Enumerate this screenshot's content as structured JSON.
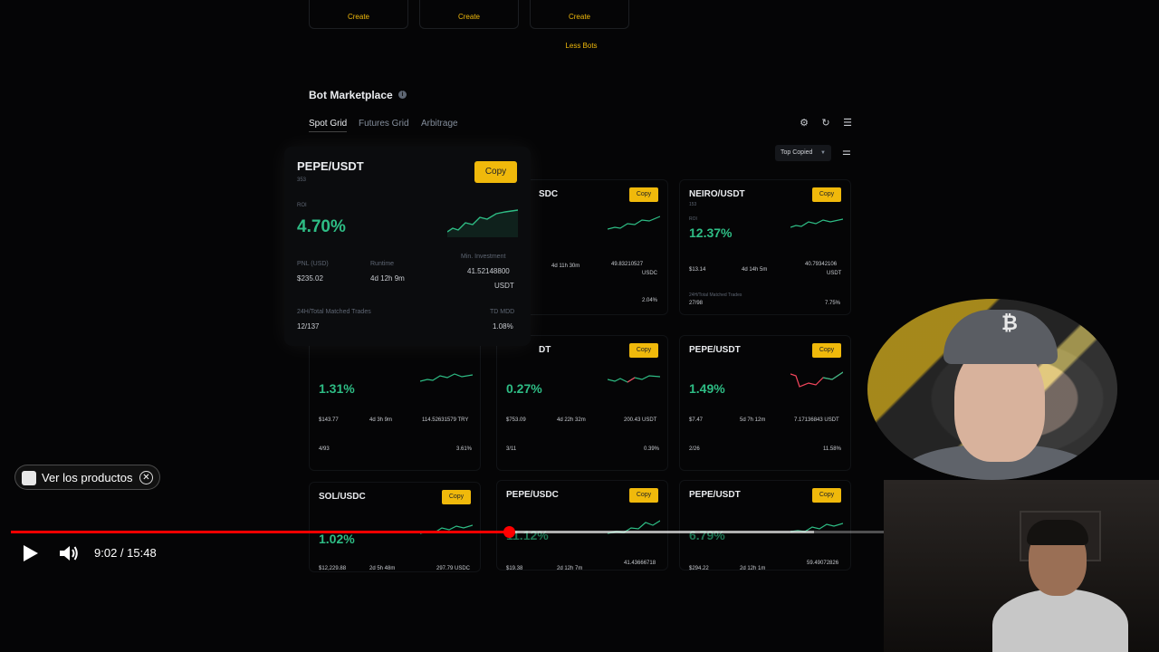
{
  "top_cards": {
    "create_label": "Create",
    "less_bots": "Less Bots"
  },
  "marketplace": {
    "title": "Bot Marketplace",
    "tabs": [
      "Spot Grid",
      "Futures Grid",
      "Arbitrage"
    ],
    "sort_label": "Top Copied",
    "copy_label": "Copy"
  },
  "featured_bot": {
    "pair": "PEPE/USDT",
    "users": "353",
    "roi_label": "ROI",
    "roi": "4.70%",
    "pnl_label": "PNL (USD)",
    "pnl": "$235.02",
    "runtime_label": "Runtime",
    "runtime": "4d 12h 9m",
    "min_inv_label": "Min. Investment",
    "min_inv": "41.52148800",
    "min_inv_unit": "USDT",
    "trades_label": "24H/Total Matched Trades",
    "trades": "12/137",
    "mdd_label": "TD MDD",
    "mdd": "1.08%"
  },
  "bots": [
    {
      "pair": "SDC",
      "users": "",
      "roi": "",
      "pnl": "",
      "runtime": "4d 11h 30m",
      "min_inv": "49.83210527",
      "unit": "USDC",
      "trades": "",
      "mdd": "2.04%"
    },
    {
      "pair": "NEIRO/USDT",
      "users": "153",
      "roi": "12.37%",
      "pnl": "$13.14",
      "runtime": "4d 14h 5m",
      "min_inv": "40.79342106",
      "unit": "USDT",
      "trades": "27/98",
      "mdd": "7.75%"
    },
    {
      "pair": "",
      "users": "",
      "roi": "1.31%",
      "pnl": "$143.77",
      "runtime": "4d 3h 9m",
      "min_inv": "114.52631579 TRY",
      "unit": "",
      "trades": "4/93",
      "mdd": "3.61%"
    },
    {
      "pair": "DT",
      "users": "",
      "roi": "0.27%",
      "pnl": "$753.09",
      "runtime": "4d 22h 32m",
      "min_inv": "200.43 USDT",
      "unit": "",
      "trades": "3/11",
      "mdd": "0.39%"
    },
    {
      "pair": "PEPE/USDT",
      "users": "",
      "roi": "1.49%",
      "pnl": "$7.47",
      "runtime": "5d 7h 12m",
      "min_inv": "7.17136843 USDT",
      "unit": "",
      "trades": "2/26",
      "mdd": "11.58%"
    },
    {
      "pair": "SOL/USDC",
      "users": "",
      "roi": "1.02%",
      "pnl": "$12,229.88",
      "runtime": "2d 5h 48m",
      "min_inv": "297.79 USDC",
      "unit": "",
      "trades": "",
      "mdd": ""
    },
    {
      "pair": "PEPE/USDC",
      "users": "",
      "roi": "11.12%",
      "pnl": "$19.38",
      "runtime": "2d 12h 7m",
      "min_inv": "41.43666718",
      "unit": "",
      "trades": "",
      "mdd": ""
    },
    {
      "pair": "PEPE/USDT",
      "users": "",
      "roi": "6.79%",
      "pnl": "$294.22",
      "runtime": "2d 12h 1m",
      "min_inv": "59.49072826",
      "unit": "",
      "trades": "",
      "mdd": ""
    }
  ],
  "labels": {
    "roi": "ROI",
    "pnl": "PNL (USD)",
    "runtime": "Runtime",
    "min_inv": "Min. Investment",
    "trades": "24H/Total Matched Trades",
    "mdd": "TD MDD"
  },
  "player": {
    "product_pill": "Ver los productos",
    "current_time": "9:02",
    "duration": "15:48",
    "time_text": "9:02 / 15:48",
    "played_fraction": 0.571,
    "buffered_fraction": 0.92
  },
  "colors": {
    "accent": "#f0b90b",
    "positive": "#2ebd85",
    "negative": "#f6465d",
    "progress": "#ff0000"
  }
}
